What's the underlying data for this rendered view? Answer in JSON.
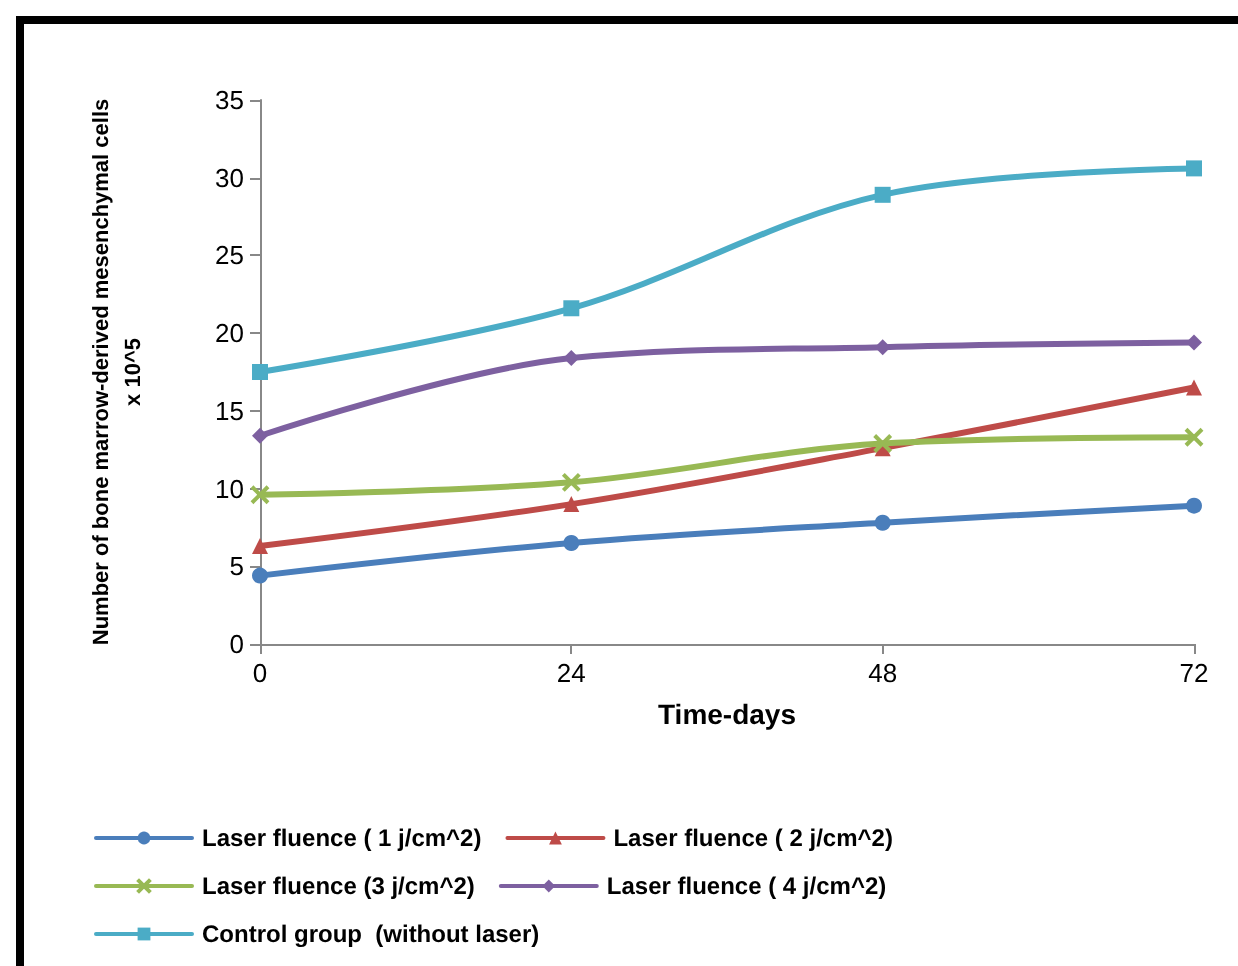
{
  "chart_data": {
    "type": "line",
    "xlabel": "Time-days",
    "ylabel": "Number of bone marrow-derived mesenchymal cells\nx 10^5",
    "x": [
      0,
      24,
      48,
      72
    ],
    "xlim": [
      0,
      72
    ],
    "xticks": [
      0,
      24,
      48,
      72
    ],
    "ylim": [
      0,
      35
    ],
    "yticks": [
      0,
      5,
      10,
      15,
      20,
      25,
      30,
      35
    ],
    "grid": false,
    "legend": "bottom",
    "line_style": "solid",
    "series": [
      {
        "name": "Laser fluence ( 1 j/cm^2)",
        "color": "#4a7ebb",
        "marker": "circle",
        "values": [
          4.4,
          6.5,
          7.8,
          8.9
        ]
      },
      {
        "name": "Laser fluence ( 2 j/cm^2)",
        "color": "#be4b48",
        "marker": "triangle",
        "values": [
          6.3,
          9.0,
          12.6,
          16.5
        ]
      },
      {
        "name": "Laser fluence (3 j/cm^2)",
        "color": "#98b954",
        "marker": "cross",
        "values": [
          9.6,
          10.4,
          12.9,
          13.3
        ]
      },
      {
        "name": "Laser fluence ( 4 j/cm^2)",
        "color": "#7d60a0",
        "marker": "diamond",
        "values": [
          13.4,
          18.4,
          19.1,
          19.4
        ]
      },
      {
        "name": "Control group  (without laser)",
        "color": "#4bacc6",
        "marker": "square",
        "values": [
          17.5,
          21.6,
          28.9,
          30.6
        ]
      }
    ]
  }
}
